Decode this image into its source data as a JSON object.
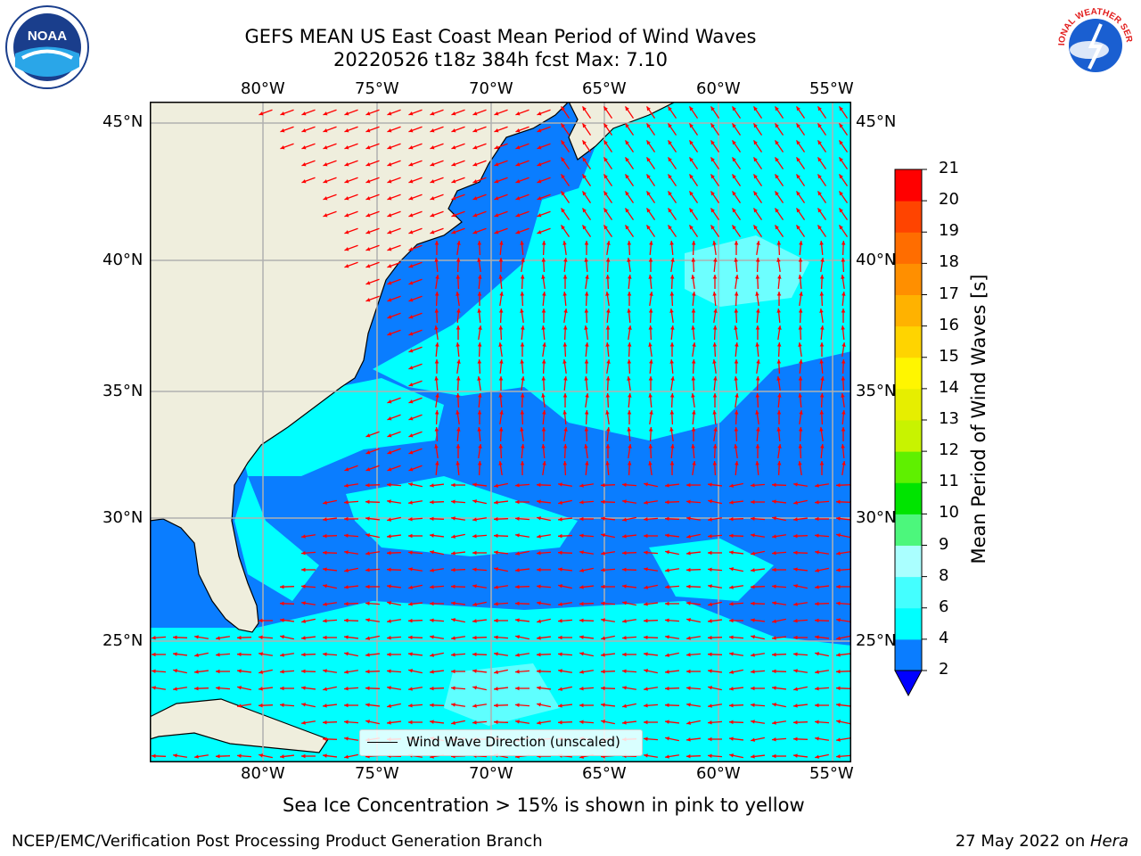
{
  "header": {
    "title_line1": "GEFS MEAN US East Coast Mean Period of Wind Waves",
    "title_line2": "20220526 t18z 384h fcst   Max: 7.10",
    "left_logo": "noaa-logo",
    "right_logo": "national-weather-service-logo",
    "left_logo_text": "NOAA",
    "right_logo_ring_text": "NATIONAL WEATHER SERVICE"
  },
  "map": {
    "lon_labels": [
      "80°W",
      "75°W",
      "70°W",
      "65°W",
      "60°W",
      "55°W"
    ],
    "lat_labels": [
      "45°N",
      "40°N",
      "35°N",
      "30°N",
      "25°N"
    ],
    "legend_label": "Wind Wave Direction (unscaled)",
    "colors": {
      "land": "#efeedd",
      "ocean_low": "#0a7dff",
      "ocean_mid": "#00ffff",
      "ocean_high": "#88ffff",
      "arrow": "#ff0000",
      "grid": "#b0b0b0",
      "coast": "#000000"
    }
  },
  "colorbar": {
    "label": "Mean Period of Wind Waves [s]",
    "ticks": [
      "2",
      "4",
      "6",
      "8",
      "9",
      "10",
      "11",
      "12",
      "13",
      "14",
      "15",
      "16",
      "17",
      "18",
      "19",
      "20",
      "21"
    ],
    "colors": [
      "#0a7dff",
      "#00ffff",
      "#44ffff",
      "#aaffff",
      "#4cf77c",
      "#00e400",
      "#5ff000",
      "#c8f300",
      "#e6ee00",
      "#fff600",
      "#ffd400",
      "#ffb200",
      "#ff8f00",
      "#ff6d00",
      "#ff4400",
      "#ff0000"
    ],
    "under_color": "#0000ff"
  },
  "notes": {
    "sea_ice": "Sea Ice Concentration > 15% is shown in pink to yellow"
  },
  "footer": {
    "left": "NCEP/EMC/Verification Post Processing Product Generation Branch",
    "right_date": "27 May 2022 on ",
    "right_machine": "Hera"
  }
}
